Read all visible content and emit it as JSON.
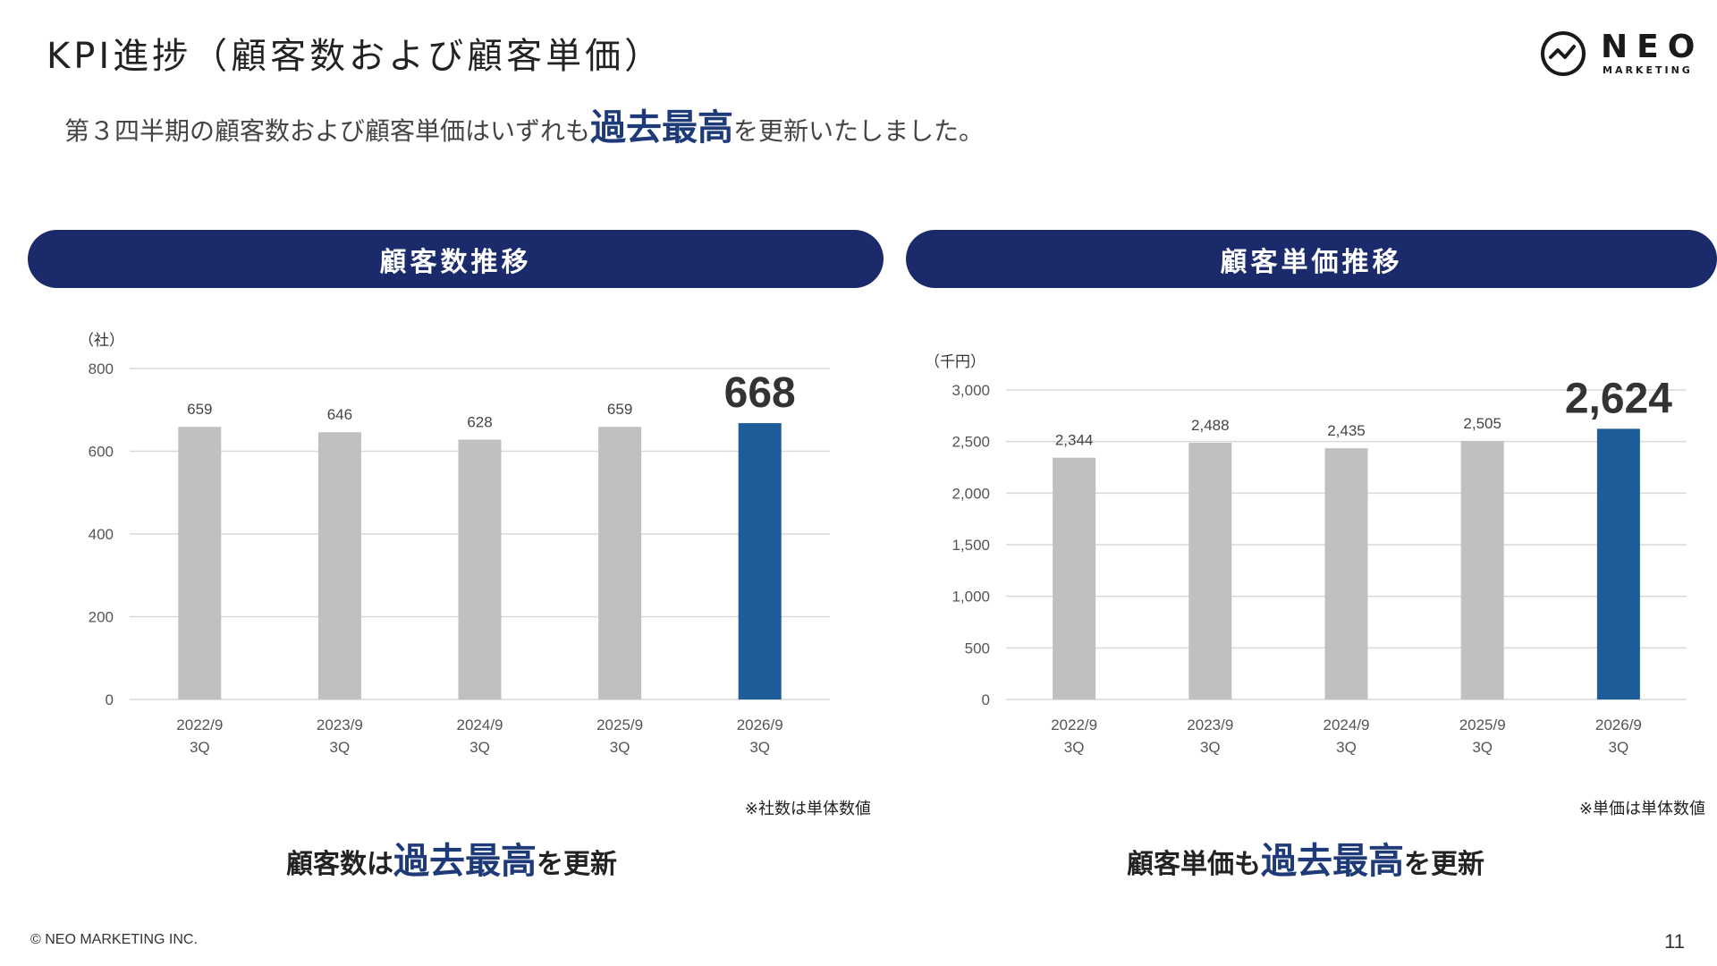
{
  "page": {
    "title": "KPI進捗（顧客数および顧客単価）",
    "summary_pre": "第３四半期の顧客数および顧客単価はいずれも",
    "summary_highlight": "過去最高",
    "summary_post": "を更新いたしました。",
    "copyright": "© NEO MARKETING INC.",
    "page_number": "11"
  },
  "logo": {
    "word": "NEO",
    "sub": "MARKETING"
  },
  "panels": {
    "left": {
      "header": "顧客数推移",
      "note": "※社数は単体数値",
      "conclusion_pre": "顧客数は",
      "conclusion_highlight": "過去最高",
      "conclusion_post": "を更新"
    },
    "right": {
      "header": "顧客単価推移",
      "note": "※単価は単体数値",
      "conclusion_pre": "顧客単価も",
      "conclusion_highlight": "過去最高",
      "conclusion_post": "を更新"
    }
  },
  "colors": {
    "navy": "#1b2a6b",
    "highlight_text": "#1e3a78",
    "bar_gray": "#c0c0c0",
    "bar_highlight": "#1f5c9a",
    "gridline": "#d9d9d9"
  },
  "chart_data": [
    {
      "type": "bar",
      "unit_label": "（社）",
      "categories": [
        [
          "2022/9",
          "3Q"
        ],
        [
          "2023/9",
          "3Q"
        ],
        [
          "2024/9",
          "3Q"
        ],
        [
          "2025/9",
          "3Q"
        ],
        [
          "2026/9",
          "3Q"
        ]
      ],
      "values": [
        659,
        646,
        628,
        659,
        668
      ],
      "value_labels": [
        "659",
        "646",
        "628",
        "659",
        "668"
      ],
      "highlight_index": 4,
      "ylim": [
        0,
        800
      ],
      "yticks": [
        0,
        200,
        400,
        600,
        800
      ],
      "ytick_labels": [
        "0",
        "200",
        "400",
        "600",
        "800"
      ],
      "grid": true
    },
    {
      "type": "bar",
      "unit_label": "（千円）",
      "categories": [
        [
          "2022/9",
          "3Q"
        ],
        [
          "2023/9",
          "3Q"
        ],
        [
          "2024/9",
          "3Q"
        ],
        [
          "2025/9",
          "3Q"
        ],
        [
          "2026/9",
          "3Q"
        ]
      ],
      "values": [
        2344,
        2488,
        2435,
        2505,
        2624
      ],
      "value_labels": [
        "2,344",
        "2,488",
        "2,435",
        "2,505",
        "2,624"
      ],
      "highlight_index": 4,
      "ylim": [
        0,
        3000
      ],
      "yticks": [
        0,
        500,
        1000,
        1500,
        2000,
        2500,
        3000
      ],
      "ytick_labels": [
        "0",
        "500",
        "1,000",
        "1,500",
        "2,000",
        "2,500",
        "3,000"
      ],
      "grid": true
    }
  ]
}
